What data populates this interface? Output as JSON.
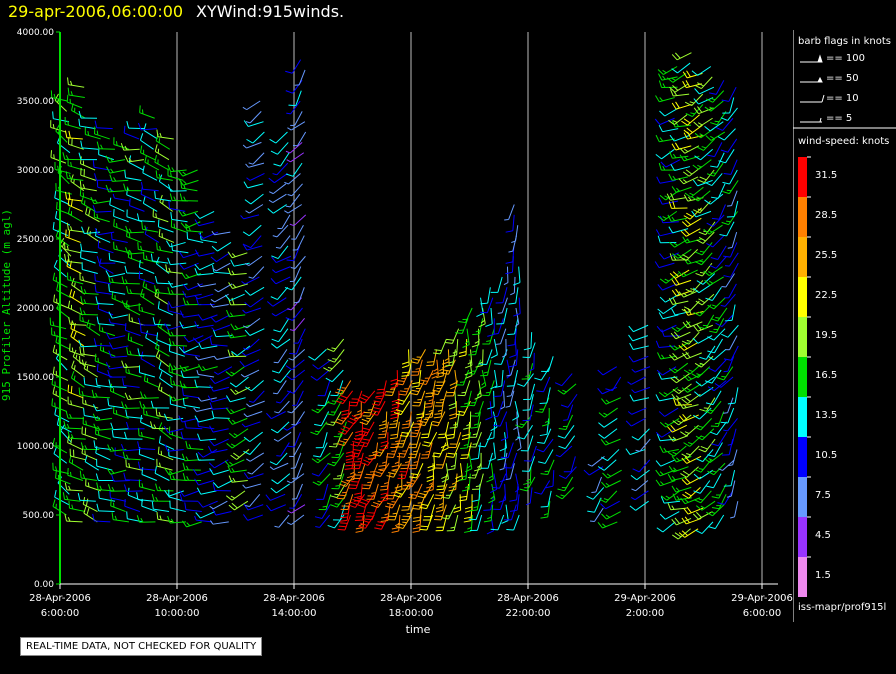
{
  "header": {
    "date_title": "29-apr-2006,06:00:00",
    "plot_title": "XYWind:915winds."
  },
  "qc_notice": "REAL-TIME DATA, NOT CHECKED FOR QUALITY",
  "legend": {
    "flags_title": "barb flags in knots",
    "flags": [
      {
        "label": "== 100",
        "kind": "pennant"
      },
      {
        "label": "== 50",
        "kind": "half-pennant"
      },
      {
        "label": "== 10",
        "kind": "full-barb"
      },
      {
        "label": "== 5",
        "kind": "half-barb"
      }
    ],
    "speed_title": "wind-speed: knots",
    "source": "iss-mapr/prof915l",
    "colorbar": [
      {
        "label": "31.5",
        "color": "#ff0000"
      },
      {
        "label": "28.5",
        "color": "#ff8000"
      },
      {
        "label": "25.5",
        "color": "#ffb000"
      },
      {
        "label": "22.5",
        "color": "#ffff00"
      },
      {
        "label": "19.5",
        "color": "#a0ff30"
      },
      {
        "label": "16.5",
        "color": "#00e000"
      },
      {
        "label": "13.5",
        "color": "#00ffff"
      },
      {
        "label": "10.5",
        "color": "#0000ff"
      },
      {
        "label": "7.5",
        "color": "#6699ff"
      },
      {
        "label": "4.5",
        "color": "#9933ff"
      },
      {
        "label": "1.5",
        "color": "#ee88ee"
      }
    ]
  },
  "chart_data": {
    "type": "scatter",
    "title": "XYWind:915winds.",
    "xlabel": "time",
    "ylabel": "915 Profiler Altitude (m agl)",
    "ylim": [
      0,
      4000
    ],
    "y_ticks": [
      "0.00",
      "500.00",
      "1000.00",
      "1500.00",
      "2000.00",
      "2500.00",
      "3000.00",
      "3500.00",
      "4000.00"
    ],
    "x_ticks": [
      [
        "28-Apr-2006",
        "6:00:00"
      ],
      [
        "28-Apr-2006",
        "10:00:00"
      ],
      [
        "28-Apr-2006",
        "14:00:00"
      ],
      [
        "28-Apr-2006",
        "18:00:00"
      ],
      [
        "28-Apr-2006",
        "22:00:00"
      ],
      [
        "29-Apr-2006",
        "2:00:00"
      ],
      [
        "29-Apr-2006",
        "6:00:00"
      ]
    ],
    "x_range_hours": [
      0,
      24
    ],
    "grid": "vertical",
    "profiles": [
      {
        "hour": 0.3,
        "alt_min": 500,
        "alt_max": 3500,
        "speed": 16,
        "dir": 300
      },
      {
        "hour": 0.8,
        "alt_min": 450,
        "alt_max": 3600,
        "speed": 19,
        "dir": 290
      },
      {
        "hour": 1.3,
        "alt_min": 450,
        "alt_max": 3400,
        "speed": 17,
        "dir": 285
      },
      {
        "hour": 1.8,
        "alt_min": 450,
        "alt_max": 3300,
        "speed": 14,
        "dir": 280
      },
      {
        "hour": 2.3,
        "alt_min": 450,
        "alt_max": 3200,
        "speed": 13,
        "dir": 275
      },
      {
        "hour": 2.8,
        "alt_min": 450,
        "alt_max": 3350,
        "speed": 15,
        "dir": 280
      },
      {
        "hour": 3.3,
        "alt_min": 450,
        "alt_max": 3400,
        "speed": 14,
        "dir": 285
      },
      {
        "hour": 3.8,
        "alt_min": 450,
        "alt_max": 3250,
        "speed": 16,
        "dir": 290
      },
      {
        "hour": 4.3,
        "alt_min": 450,
        "alt_max": 3000,
        "speed": 15,
        "dir": 270
      },
      {
        "hour": 4.8,
        "alt_min": 450,
        "alt_max": 3000,
        "speed": 14,
        "dir": 265
      },
      {
        "hour": 5.3,
        "alt_min": 450,
        "alt_max": 2700,
        "speed": 12,
        "dir": 260
      },
      {
        "hour": 5.8,
        "alt_min": 450,
        "alt_max": 2600,
        "speed": 11,
        "dir": 255
      },
      {
        "hour": 6.4,
        "alt_min": 600,
        "alt_max": 2400,
        "speed": 17,
        "dir": 250
      },
      {
        "hour": 6.9,
        "alt_min": 500,
        "alt_max": 3500,
        "speed": 10,
        "dir": 240
      },
      {
        "hour": 7.8,
        "alt_min": 500,
        "alt_max": 3300,
        "speed": 11,
        "dir": 230
      },
      {
        "hour": 8.3,
        "alt_min": 500,
        "alt_max": 3800,
        "speed": 9,
        "dir": 220
      },
      {
        "hour": 9.2,
        "alt_min": 500,
        "alt_max": 1700,
        "speed": 13,
        "dir": 215
      },
      {
        "hour": 9.7,
        "alt_min": 500,
        "alt_max": 1800,
        "speed": 16,
        "dir": 205
      },
      {
        "hour": 10.0,
        "alt_min": 500,
        "alt_max": 1500,
        "speed": 31,
        "dir": 200
      },
      {
        "hour": 10.4,
        "alt_min": 500,
        "alt_max": 1450,
        "speed": 32,
        "dir": 200
      },
      {
        "hour": 10.8,
        "alt_min": 500,
        "alt_max": 1450,
        "speed": 30,
        "dir": 200
      },
      {
        "hour": 11.2,
        "alt_min": 500,
        "alt_max": 1500,
        "speed": 29,
        "dir": 195
      },
      {
        "hour": 11.6,
        "alt_min": 500,
        "alt_max": 1600,
        "speed": 28,
        "dir": 195
      },
      {
        "hour": 12.0,
        "alt_min": 500,
        "alt_max": 1750,
        "speed": 27,
        "dir": 195
      },
      {
        "hour": 12.4,
        "alt_min": 500,
        "alt_max": 1700,
        "speed": 26,
        "dir": 195
      },
      {
        "hour": 12.8,
        "alt_min": 500,
        "alt_max": 1700,
        "speed": 25,
        "dir": 190
      },
      {
        "hour": 13.2,
        "alt_min": 500,
        "alt_max": 1800,
        "speed": 24,
        "dir": 190
      },
      {
        "hour": 13.6,
        "alt_min": 500,
        "alt_max": 1900,
        "speed": 22,
        "dir": 190
      },
      {
        "hour": 14.0,
        "alt_min": 500,
        "alt_max": 2000,
        "speed": 20,
        "dir": 190
      },
      {
        "hour": 14.4,
        "alt_min": 500,
        "alt_max": 2100,
        "speed": 17,
        "dir": 185
      },
      {
        "hour": 14.8,
        "alt_min": 500,
        "alt_max": 2200,
        "speed": 14,
        "dir": 185
      },
      {
        "hour": 15.2,
        "alt_min": 500,
        "alt_max": 2300,
        "speed": 11,
        "dir": 185
      },
      {
        "hour": 15.6,
        "alt_min": 500,
        "alt_max": 2800,
        "speed": 10,
        "dir": 185
      },
      {
        "hour": 16.2,
        "alt_min": 700,
        "alt_max": 1850,
        "speed": 13,
        "dir": 200
      },
      {
        "hour": 16.8,
        "alt_min": 600,
        "alt_max": 1700,
        "speed": 14,
        "dir": 200
      },
      {
        "hour": 17.6,
        "alt_min": 700,
        "alt_max": 1550,
        "speed": 13,
        "dir": 210
      },
      {
        "hour": 18.6,
        "alt_min": 550,
        "alt_max": 950,
        "speed": 11,
        "dir": 220
      },
      {
        "hour": 19.1,
        "alt_min": 450,
        "alt_max": 1600,
        "speed": 14,
        "dir": 230
      },
      {
        "hour": 20.1,
        "alt_min": 600,
        "alt_max": 1900,
        "speed": 12,
        "dir": 240
      },
      {
        "hour": 21.1,
        "alt_min": 450,
        "alt_max": 3800,
        "speed": 14,
        "dir": 250
      },
      {
        "hour": 21.5,
        "alt_min": 400,
        "alt_max": 3900,
        "speed": 18,
        "dir": 250
      },
      {
        "hour": 21.9,
        "alt_min": 400,
        "alt_max": 3700,
        "speed": 20,
        "dir": 240
      },
      {
        "hour": 22.3,
        "alt_min": 450,
        "alt_max": 3800,
        "speed": 17,
        "dir": 230
      },
      {
        "hour": 22.7,
        "alt_min": 500,
        "alt_max": 3700,
        "speed": 14,
        "dir": 220
      },
      {
        "hour": 23.1,
        "alt_min": 600,
        "alt_max": 3600,
        "speed": 12,
        "dir": 210
      }
    ]
  }
}
